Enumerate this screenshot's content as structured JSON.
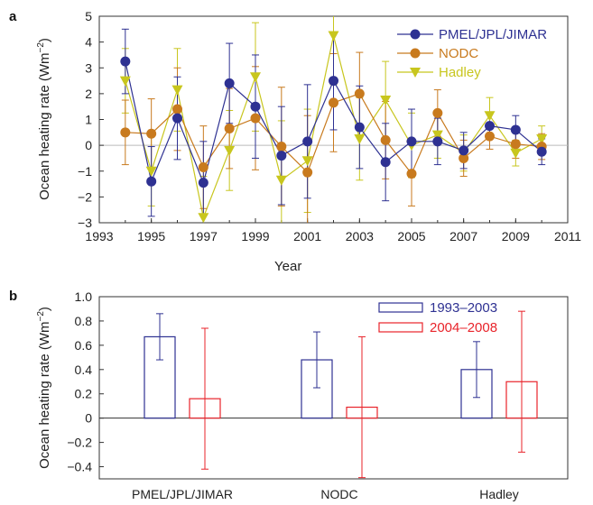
{
  "panel_a_label": "a",
  "panel_b_label": "b",
  "chart_data": [
    {
      "type": "line",
      "ylabel_main": "Ocean heating rate (Wm",
      "ylabel_sup": "−2",
      "ylabel_close": ")",
      "xlabel": "Year",
      "xlim": [
        1993,
        2011
      ],
      "ylim": [
        -3,
        5
      ],
      "xticks": [
        "1993",
        "1995",
        "1997",
        "1999",
        "2001",
        "2003",
        "2005",
        "2007",
        "2009",
        "2011"
      ],
      "yticks": [
        "−3",
        "−2",
        "−1",
        "0",
        "1",
        "2",
        "3",
        "4",
        "5"
      ],
      "x": [
        1994,
        1995,
        1996,
        1997,
        1998,
        1999,
        2000,
        2001,
        2002,
        2003,
        2004,
        2005,
        2006,
        2007,
        2008,
        2009,
        2010
      ],
      "series": [
        {
          "name": "PMEL/JPL/JIMAR",
          "color": "#2e3192",
          "marker": "circle",
          "values": [
            3.25,
            -1.4,
            1.05,
            -1.45,
            2.4,
            1.5,
            -0.4,
            0.15,
            2.5,
            0.7,
            -0.65,
            0.15,
            0.15,
            -0.2,
            0.75,
            0.6,
            -0.25
          ],
          "err": [
            1.25,
            1.35,
            1.6,
            1.6,
            1.55,
            2.0,
            1.9,
            2.2,
            1.9,
            1.6,
            1.5,
            1.25,
            0.9,
            0.7,
            0.5,
            0.55,
            0.5
          ]
        },
        {
          "name": "NODC",
          "color": "#c87a1e",
          "marker": "circle",
          "values": [
            0.5,
            0.45,
            1.4,
            -0.85,
            0.65,
            1.05,
            -0.05,
            -1.05,
            1.65,
            2.0,
            0.2,
            -1.1,
            1.25,
            -0.5,
            0.35,
            0.05,
            -0.05
          ],
          "err": [
            1.25,
            1.35,
            1.6,
            1.6,
            1.55,
            2.0,
            2.3,
            2.2,
            1.9,
            1.6,
            1.5,
            1.25,
            0.9,
            0.7,
            0.5,
            0.55,
            0.5
          ]
        },
        {
          "name": "Hadley",
          "color": "#c8c61e",
          "marker": "triangle-down",
          "values": [
            2.5,
            -1.0,
            2.15,
            -2.8,
            -0.2,
            2.65,
            -1.35,
            -0.6,
            4.25,
            0.25,
            1.75,
            0.0,
            0.4,
            -0.3,
            1.15,
            -0.3,
            0.25
          ],
          "err": [
            1.25,
            1.35,
            1.6,
            1.6,
            1.55,
            2.1,
            2.3,
            2.0,
            1.9,
            1.6,
            1.5,
            1.25,
            0.9,
            0.7,
            0.7,
            0.5,
            0.5
          ]
        }
      ],
      "legend_position": "top-right"
    },
    {
      "type": "bar",
      "ylabel_main": "Ocean heating rate (Wm",
      "ylabel_sup": "−2",
      "ylabel_close": ")",
      "categories": [
        "PMEL/JPL/JIMAR",
        "NODC",
        "Hadley"
      ],
      "ylim": [
        -0.5,
        1.0
      ],
      "yticks": [
        "1.0",
        "0.8",
        "0.6",
        "0.4",
        "0.2",
        "0",
        "−0.2",
        "−0.4"
      ],
      "ytick_values": [
        1.0,
        0.8,
        0.6,
        0.4,
        0.2,
        0,
        -0.2,
        -0.4
      ],
      "series": [
        {
          "name": "1993–2003",
          "color": "#2e3192",
          "values": [
            0.67,
            0.48,
            0.4
          ],
          "err_low": [
            0.48,
            0.25,
            0.17
          ],
          "err_high": [
            0.86,
            0.71,
            0.63
          ]
        },
        {
          "name": "2004–2008",
          "color": "#e8232a",
          "values": [
            0.16,
            0.09,
            0.3
          ],
          "err_low": [
            -0.42,
            -0.49,
            -0.28
          ],
          "err_high": [
            0.74,
            0.67,
            0.88
          ]
        }
      ],
      "legend_position": "top-right"
    }
  ]
}
